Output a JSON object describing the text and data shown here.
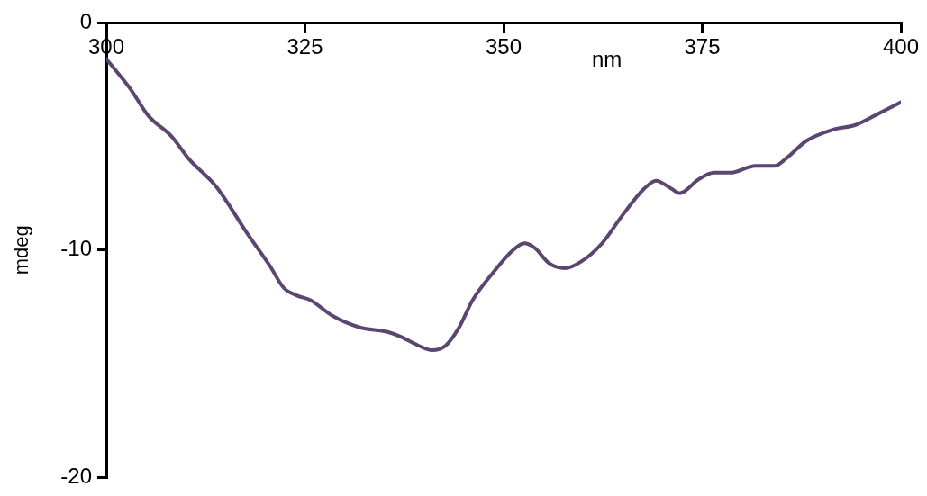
{
  "chart_data": {
    "type": "line",
    "xlabel": "nm",
    "ylabel": "mdeg",
    "xlim": [
      300,
      400
    ],
    "xticks": [
      300,
      325,
      350,
      375,
      400
    ],
    "ylim": [
      -20,
      0
    ],
    "yticks": [
      0,
      -10,
      -20
    ],
    "grid": false,
    "legend": false,
    "marker": "none",
    "line_style": "solid",
    "series": [
      {
        "color": "#5a4670",
        "x": [
          300,
          303,
          305.3,
          308.2,
          310.4,
          313.8,
          317.8,
          320.6,
          322.3,
          324,
          325.7,
          328.5,
          331.9,
          335.4,
          337,
          339.3,
          341,
          342.7,
          344.4,
          346.1,
          348.9,
          351.2,
          352.6,
          353.9,
          355.8,
          357.7,
          359.8,
          362.4,
          364.9,
          367.7,
          369.2,
          371.1,
          372.2,
          374.5,
          376.5,
          378.5,
          381.7,
          384.1,
          385.8,
          388.1,
          391.5,
          394.3,
          397.2,
          400
        ],
        "values": [
          -1.6,
          -2.9,
          -4.1,
          -5.0,
          -6.0,
          -7.2,
          -9.3,
          -10.7,
          -11.65,
          -12.0,
          -12.2,
          -12.9,
          -13.4,
          -13.6,
          -13.8,
          -14.2,
          -14.4,
          -14.2,
          -13.4,
          -12.2,
          -10.9,
          -10.0,
          -9.7,
          -9.9,
          -10.6,
          -10.8,
          -10.5,
          -9.7,
          -8.5,
          -7.3,
          -6.95,
          -7.3,
          -7.5,
          -6.9,
          -6.6,
          -6.6,
          -6.3,
          -6.3,
          -5.9,
          -5.2,
          -4.7,
          -4.5,
          -4.0,
          -3.5
        ]
      }
    ]
  }
}
